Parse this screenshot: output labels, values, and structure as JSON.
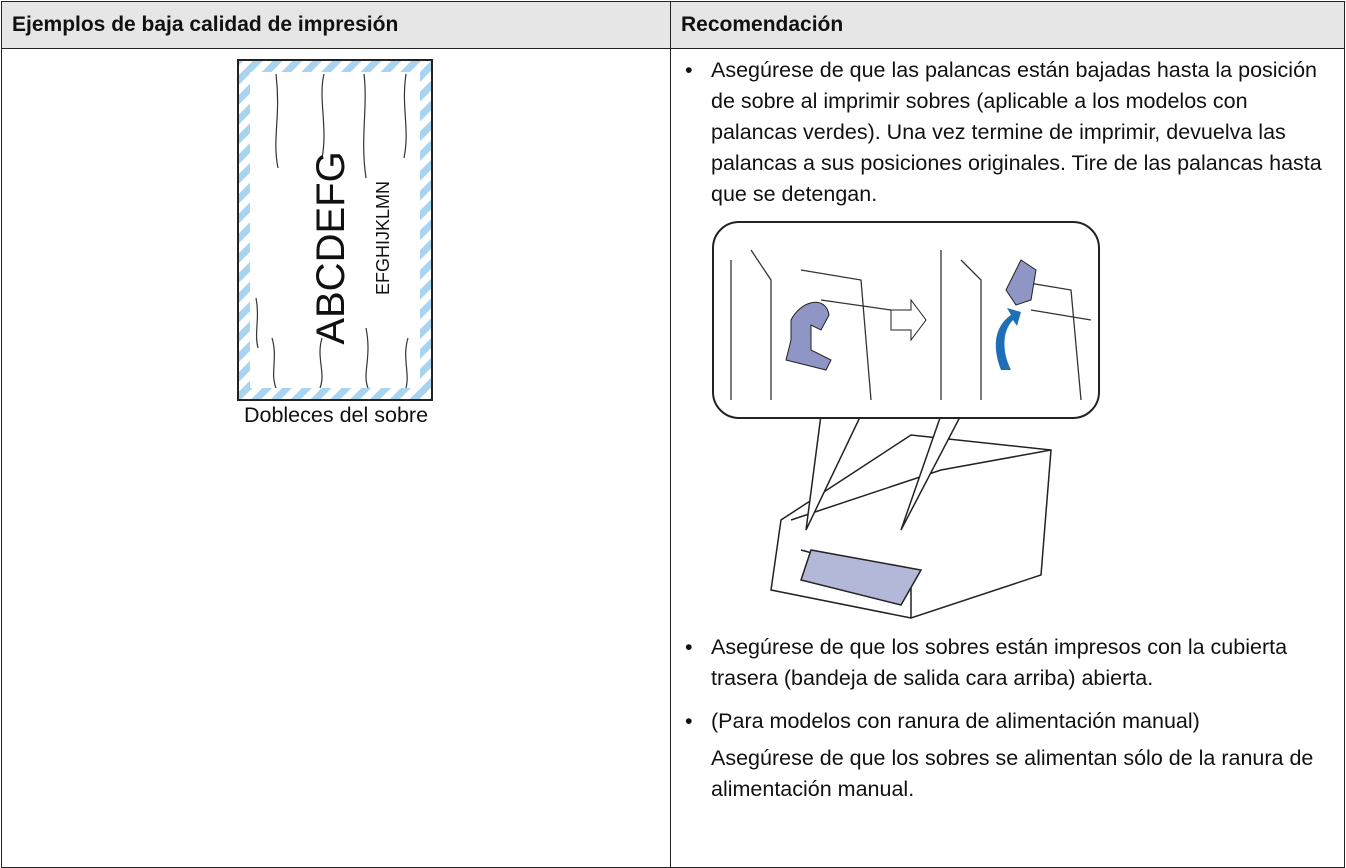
{
  "table": {
    "header": [
      "Ejemplos de baja calidad de impresión",
      "Recomendación"
    ],
    "example": {
      "big_text": "ABCDEFG",
      "small_text": "EFGHIJKLMN",
      "caption": "Dobleces del sobre"
    },
    "recommendations": [
      "Asegúrese de que las palancas están bajadas hasta la posición de sobre al imprimir sobres (aplicable a los modelos con palancas verdes). Una vez termine de imprimir, devuelva las palancas a sus posiciones originales. Tire de las palancas hasta que se detengan.",
      "Asegúrese de que los sobres están impresos con la cubierta trasera (bandeja de salida cara arriba) abierta.",
      "(Para modelos con ranura de alimentación manual)"
    ],
    "note": "Asegúrese de que los sobres se alimentan sólo de la ranura de alimentación manual."
  }
}
